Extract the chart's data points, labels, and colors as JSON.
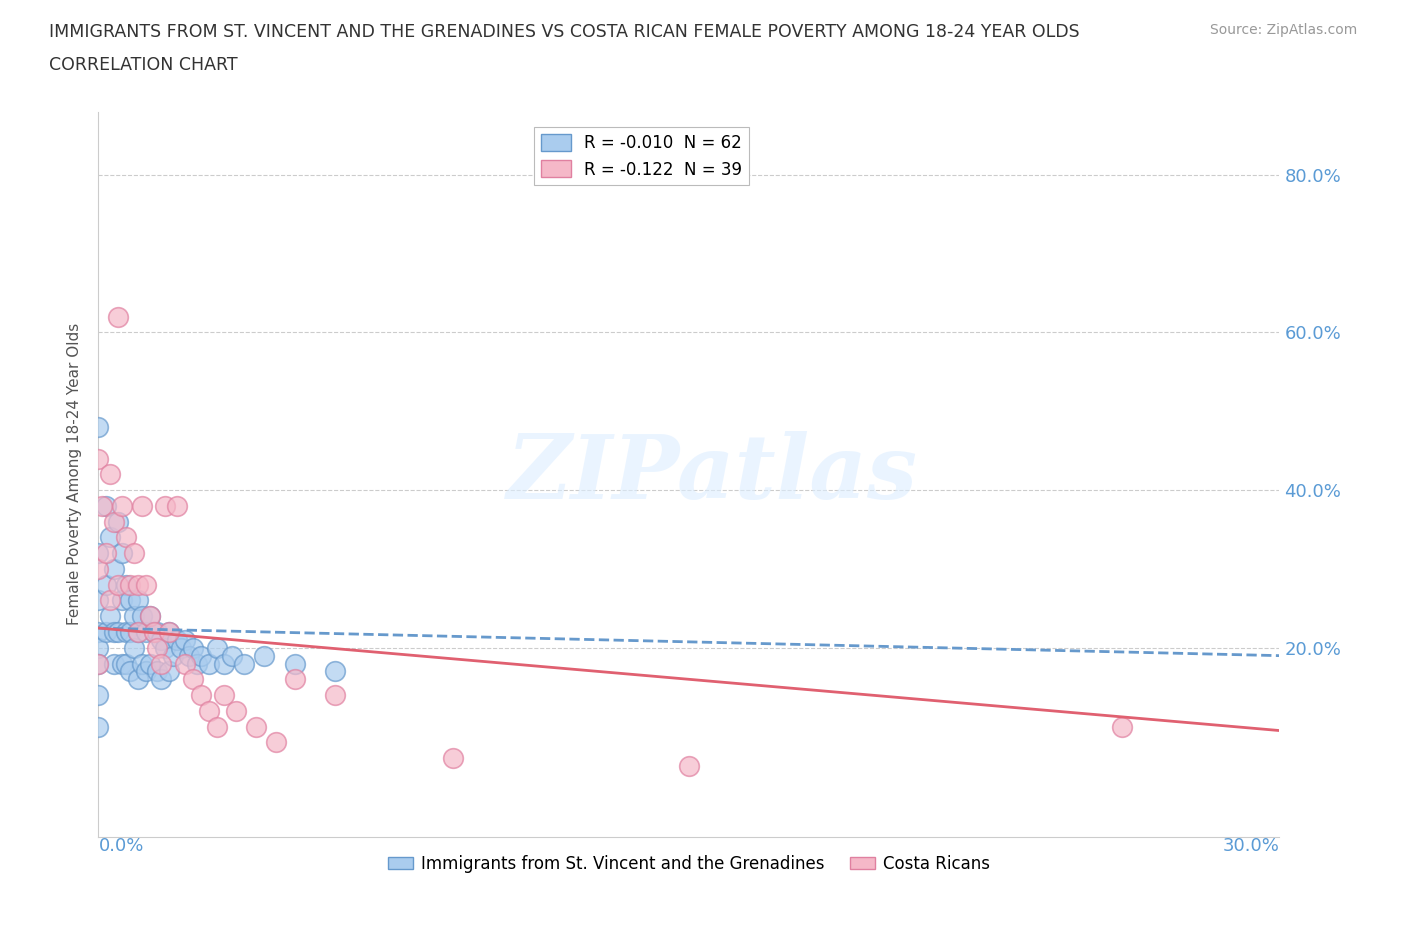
{
  "title_line1": "IMMIGRANTS FROM ST. VINCENT AND THE GRENADINES VS COSTA RICAN FEMALE POVERTY AMONG 18-24 YEAR OLDS",
  "title_line2": "CORRELATION CHART",
  "source": "Source: ZipAtlas.com",
  "ylabel": "Female Poverty Among 18-24 Year Olds",
  "ytick_labels": [
    "20.0%",
    "40.0%",
    "60.0%",
    "80.0%"
  ],
  "ytick_values": [
    0.2,
    0.4,
    0.6,
    0.8
  ],
  "xlim": [
    0.0,
    0.3
  ],
  "ylim": [
    -0.04,
    0.88
  ],
  "series1_label": "Immigrants from St. Vincent and the Grenadines",
  "series2_label": "Costa Ricans",
  "series1_face": "#aaccee",
  "series1_edge": "#6699cc",
  "series2_face": "#f5b8c8",
  "series2_edge": "#e080a0",
  "trendline1_color": "#6699cc",
  "trendline2_color": "#e06070",
  "watermark": "ZIPatlas",
  "background_color": "#ffffff",
  "grid_color": "#cccccc",
  "right_ytick_color": "#5b9bd5",
  "legend_label1": "R = -0.010  N = 62",
  "legend_label2": "R = -0.122  N = 39",
  "trendline1_x": [
    0.0,
    0.3
  ],
  "trendline1_y": [
    0.225,
    0.19
  ],
  "trendline2_x": [
    0.0,
    0.3
  ],
  "trendline2_y": [
    0.225,
    0.095
  ],
  "series1_x": [
    0.0,
    0.0,
    0.0,
    0.0,
    0.0,
    0.0,
    0.0,
    0.0,
    0.002,
    0.002,
    0.002,
    0.003,
    0.003,
    0.004,
    0.004,
    0.004,
    0.005,
    0.005,
    0.006,
    0.006,
    0.006,
    0.007,
    0.007,
    0.007,
    0.008,
    0.008,
    0.008,
    0.009,
    0.009,
    0.01,
    0.01,
    0.01,
    0.011,
    0.011,
    0.012,
    0.012,
    0.013,
    0.013,
    0.014,
    0.015,
    0.015,
    0.016,
    0.016,
    0.017,
    0.018,
    0.018,
    0.019,
    0.02,
    0.021,
    0.022,
    0.023,
    0.024,
    0.025,
    0.026,
    0.028,
    0.03,
    0.032,
    0.034,
    0.037,
    0.042,
    0.05,
    0.06
  ],
  "series1_y": [
    0.48,
    0.32,
    0.26,
    0.22,
    0.2,
    0.18,
    0.14,
    0.1,
    0.38,
    0.28,
    0.22,
    0.34,
    0.24,
    0.3,
    0.22,
    0.18,
    0.36,
    0.22,
    0.32,
    0.26,
    0.18,
    0.28,
    0.22,
    0.18,
    0.26,
    0.22,
    0.17,
    0.24,
    0.2,
    0.26,
    0.22,
    0.16,
    0.24,
    0.18,
    0.22,
    0.17,
    0.24,
    0.18,
    0.22,
    0.22,
    0.17,
    0.21,
    0.16,
    0.2,
    0.22,
    0.17,
    0.19,
    0.21,
    0.2,
    0.21,
    0.19,
    0.2,
    0.18,
    0.19,
    0.18,
    0.2,
    0.18,
    0.19,
    0.18,
    0.19,
    0.18,
    0.17
  ],
  "series2_x": [
    0.0,
    0.0,
    0.0,
    0.001,
    0.002,
    0.003,
    0.003,
    0.004,
    0.005,
    0.005,
    0.006,
    0.007,
    0.008,
    0.009,
    0.01,
    0.01,
    0.011,
    0.012,
    0.013,
    0.014,
    0.015,
    0.016,
    0.017,
    0.018,
    0.02,
    0.022,
    0.024,
    0.026,
    0.028,
    0.03,
    0.032,
    0.035,
    0.04,
    0.045,
    0.05,
    0.06,
    0.09,
    0.15,
    0.26
  ],
  "series2_y": [
    0.44,
    0.3,
    0.18,
    0.38,
    0.32,
    0.42,
    0.26,
    0.36,
    0.62,
    0.28,
    0.38,
    0.34,
    0.28,
    0.32,
    0.28,
    0.22,
    0.38,
    0.28,
    0.24,
    0.22,
    0.2,
    0.18,
    0.38,
    0.22,
    0.38,
    0.18,
    0.16,
    0.14,
    0.12,
    0.1,
    0.14,
    0.12,
    0.1,
    0.08,
    0.16,
    0.14,
    0.06,
    0.05,
    0.1
  ]
}
